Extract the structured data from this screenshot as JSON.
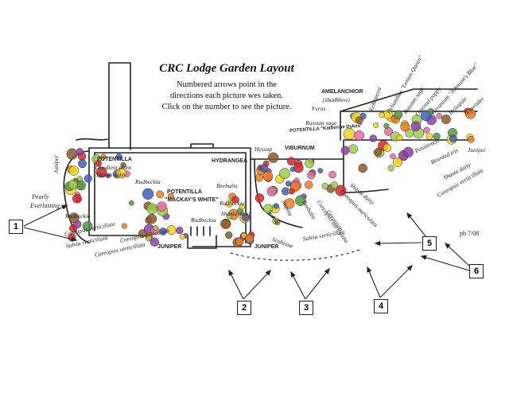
{
  "title": "CRC Lodge Garden Layout",
  "subtitle_lines": [
    "Numbered arrows point in the",
    "directions each picture wes taken.",
    "Click on the number to see the  picture."
  ],
  "signature": "pb 7/08",
  "photo_links": [
    {
      "number": "1"
    },
    {
      "number": "2"
    },
    {
      "number": "3"
    },
    {
      "number": "4"
    },
    {
      "number": "5"
    },
    {
      "number": "6"
    }
  ],
  "labels": {
    "juniper_left": "Juniper",
    "pearly": "Pearly",
    "everlasting": "Everlasting",
    "potentilla_1": "POTENTILLA",
    "obedient": "Obedient plant",
    "shasta_1": "Shasta daisy",
    "rudbeckia_1": "Rudbeckia",
    "potentilla_2": "POTENTILLA",
    "mackays_white": "\"MACKAY'S WHITE\"",
    "rudbeckia_left": "Rudbeckia",
    "coreopsis_v1": "Coreopsis verticillata",
    "salvia_v": "Salvia verticillata",
    "coreopsis_v2": "Coreopsis verticillata",
    "coreopsis_a": "Coreopsis auriculata",
    "rudbeckia_bottom": "Rudbeckia",
    "juniper_b1": "JUNIPER",
    "juniper_b2": "JUNIPER",
    "hydrangea": "HYDRANGEA",
    "beebalm_1": "Beebalm",
    "rudbeckia_3": "Rudbeckia",
    "shasta_2": "Shasta daisy",
    "hyssop": "Hyssop",
    "viburnum": "VIBURNUM",
    "potentilla_3": "POTENTILLA \"Katherine Dykes\"",
    "russian_sage": "Russian sage",
    "ferns": "Ferns",
    "amelanchior": "AMELANCHIOR",
    "shadblow": "(shadblow)",
    "echinacea": "Echinacea",
    "helianthus": "Helianthus \"Lemon Queen\"",
    "russian_sage_2": "Russian sage",
    "oriental_poppy": "Oriental poppy",
    "heliopsis": "Heliopsis",
    "shasta_3": "Shasta daisy",
    "penstemon": "Penstemon",
    "geranium_johnsons": "Geranium \"Johnson's Blue\"",
    "coreopsis_v3": "Coreopsis verticillata",
    "bearded_iris": "Bearded iris",
    "lavender": "Lavender",
    "juniper_right": "Juniper",
    "shasta_4": "Shasta daisy",
    "coreopsis_a2": "Coreopsis auriculata",
    "beebalm_2": "Beebalm",
    "scabiosa": "Scabiosa",
    "nepeta": "Nepeta",
    "geranium": "Geranium",
    "coreopsis_a3": "Coreopsis auriculata",
    "sedum": "Sedum",
    "salvia_v2": "Salvia verticillata"
  },
  "colors": {
    "ink": "#222222",
    "orange": "#f07a1c",
    "yellow": "#f3d21b",
    "red": "#d8262b",
    "purple": "#8c3fa8",
    "blue": "#3f5fc0",
    "green": "#4d9a3a",
    "lightgreen": "#9ccc4a",
    "pink": "#e86aa0",
    "brown": "#8a5a2b"
  }
}
